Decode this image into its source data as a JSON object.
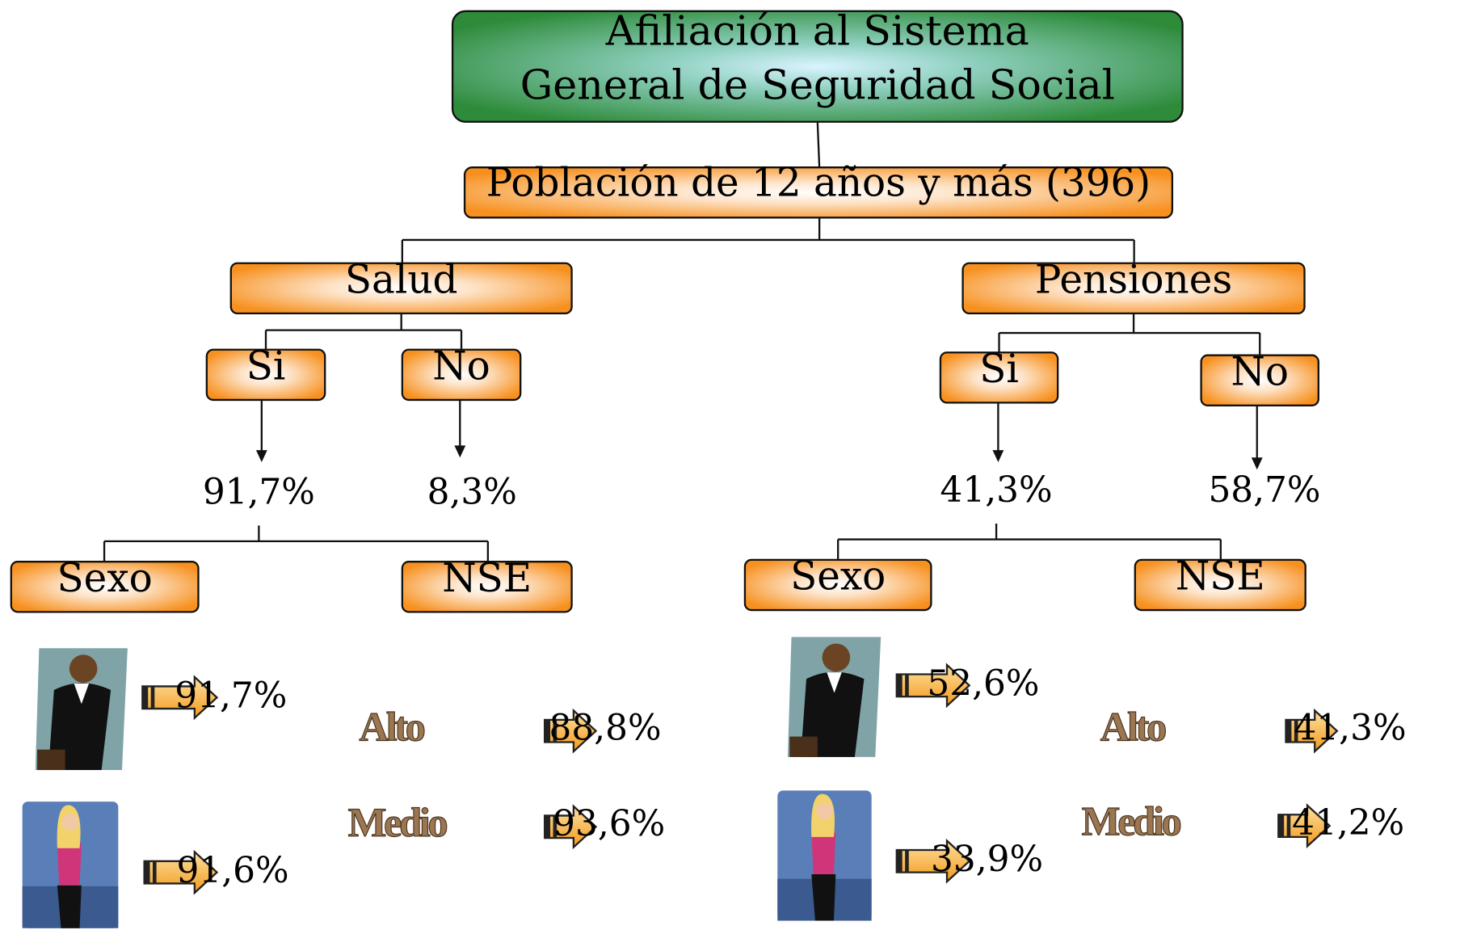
{
  "title": [
    "Afiliación al Sistema",
    "General de Seguridad Social"
  ],
  "population": "Población de 12 años y más (396)",
  "branches": [
    {
      "label": "Salud",
      "options": [
        {
          "label": "Si",
          "value": "91,7%"
        },
        {
          "label": "No",
          "value": "8,3%"
        }
      ],
      "breakdown": [
        "Sexo",
        "NSE"
      ],
      "sexo": [
        "91,7%",
        "91,6%"
      ],
      "nse": [
        {
          "label": "Alto",
          "value": "88,8%"
        },
        {
          "label": "Medio",
          "value": "93,6%"
        }
      ]
    },
    {
      "label": "Pensiones",
      "options": [
        {
          "label": "Si",
          "value": "41,3%"
        },
        {
          "label": "No",
          "value": "58,7%"
        }
      ],
      "breakdown": [
        "Sexo",
        "NSE"
      ],
      "sexo": [
        "52,6%",
        "33,9%"
      ],
      "nse": [
        {
          "label": "Alto",
          "value": "41,3%"
        },
        {
          "label": "Medio",
          "value": "41,2%"
        }
      ]
    }
  ]
}
